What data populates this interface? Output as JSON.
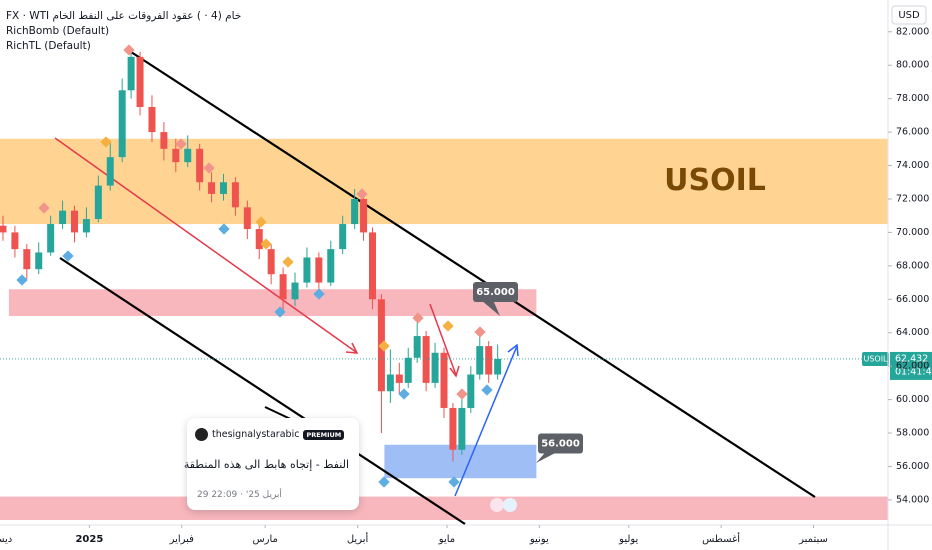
{
  "chart_data": {
    "type": "candlestick",
    "title": "FX · WTI خام (4 · ) عقود الفروقات على النفط الخام",
    "indicators": [
      "RichBomb (Default)",
      "RichTL (Default)"
    ],
    "currency": "USD",
    "symbol": "USOIL",
    "zone_label": "USOIL",
    "up_color": "#26a69a",
    "down_color": "#ef5350",
    "x": [
      -29,
      -25,
      -21,
      -17,
      -13,
      -9,
      -5,
      -1,
      3,
      7,
      11,
      14,
      17,
      21,
      25,
      29,
      33,
      37,
      41,
      45,
      49,
      53,
      57,
      61,
      65,
      69,
      73,
      77,
      81,
      85,
      89,
      92,
      95,
      98,
      101,
      104,
      107,
      110,
      113,
      116,
      119,
      122,
      125,
      128,
      131,
      134,
      137
    ],
    "open": [
      70.4,
      70.0,
      69.0,
      67.8,
      68.8,
      70.5,
      71.3,
      70.0,
      70.8,
      72.8,
      74.5,
      78.5,
      80.5,
      77.5,
      76.0,
      75.0,
      74.2,
      75.0,
      73.0,
      72.3,
      73.0,
      71.5,
      70.2,
      69.0,
      67.5,
      66.0,
      67.0,
      68.5,
      67.0,
      69.0,
      70.5,
      72.0,
      70.0,
      66.0,
      60.5,
      61.5,
      61.0,
      62.5,
      63.8,
      61.0,
      62.8,
      59.5,
      57.0,
      59.5,
      61.5,
      63.2,
      61.5
    ],
    "high": [
      71.0,
      70.4,
      69.3,
      69.4,
      71.0,
      71.9,
      71.6,
      71.5,
      73.4,
      75.4,
      79.2,
      81.0,
      80.8,
      78.2,
      76.6,
      75.6,
      75.8,
      75.3,
      73.6,
      73.5,
      73.3,
      71.9,
      70.6,
      69.3,
      67.9,
      67.6,
      69.1,
      68.8,
      69.5,
      71.0,
      72.6,
      72.3,
      70.3,
      66.3,
      63.0,
      62.2,
      63.1,
      64.6,
      64.1,
      63.4,
      63.1,
      59.8,
      60.1,
      62.0,
      63.9,
      63.5,
      63.3
    ],
    "low": [
      69.5,
      68.5,
      67.2,
      67.5,
      68.6,
      70.2,
      69.4,
      69.7,
      70.6,
      72.5,
      74.2,
      78.0,
      77.0,
      75.4,
      74.3,
      73.6,
      73.9,
      72.5,
      71.8,
      71.9,
      71.0,
      69.6,
      68.4,
      66.9,
      65.3,
      65.6,
      66.7,
      66.5,
      66.8,
      68.7,
      70.2,
      69.5,
      65.4,
      58.0,
      59.8,
      60.3,
      60.7,
      62.2,
      60.5,
      60.7,
      58.9,
      56.3,
      56.7,
      59.2,
      61.2,
      61.0,
      61.2
    ],
    "close": [
      70.0,
      69.0,
      67.8,
      68.8,
      70.5,
      71.3,
      70.0,
      70.8,
      72.8,
      74.5,
      78.5,
      80.5,
      77.5,
      76.0,
      75.0,
      74.2,
      75.0,
      73.0,
      72.3,
      73.0,
      71.5,
      70.2,
      69.0,
      67.5,
      66.0,
      67.0,
      68.5,
      67.0,
      69.0,
      70.5,
      72.0,
      70.0,
      66.0,
      60.5,
      61.5,
      61.0,
      62.5,
      63.8,
      61.0,
      62.8,
      59.5,
      57.0,
      59.5,
      61.5,
      63.2,
      61.5,
      62.432
    ],
    "xlim": [
      -30,
      268
    ],
    "xticks": [
      {
        "value": -31,
        "label": "ديسمبر"
      },
      {
        "value": 0,
        "label": "2025"
      },
      {
        "value": 31,
        "label": "فبراير"
      },
      {
        "value": 59,
        "label": "مارس"
      },
      {
        "value": 90,
        "label": "أبريل"
      },
      {
        "value": 120,
        "label": "مايو"
      },
      {
        "value": 151,
        "label": "يونيو"
      },
      {
        "value": 181,
        "label": "يوليو"
      },
      {
        "value": 212,
        "label": "أغسطس"
      },
      {
        "value": 243,
        "label": "سبتمبر"
      }
    ],
    "ylim": [
      52.5,
      83.9
    ],
    "yticks": [
      {
        "value": 82,
        "label": "82.000"
      },
      {
        "value": 80,
        "label": "80.000"
      },
      {
        "value": 78,
        "label": "78.000"
      },
      {
        "value": 76,
        "label": "76.000"
      },
      {
        "value": 74,
        "label": "74.000"
      },
      {
        "value": 72,
        "label": "72.000"
      },
      {
        "value": 70,
        "label": "70.000"
      },
      {
        "value": 68,
        "label": "68.000"
      },
      {
        "value": 66,
        "label": "66.000"
      },
      {
        "value": 64,
        "label": "64.000"
      },
      {
        "value": 62,
        "label": "62.000"
      },
      {
        "value": 60,
        "label": "60.000"
      },
      {
        "value": 58,
        "label": "58.000"
      },
      {
        "value": 56,
        "label": "56.000"
      },
      {
        "value": 54,
        "label": "54.000"
      }
    ],
    "grid": false,
    "last_price": {
      "value": 62.432,
      "label": "62.432"
    },
    "countdown": "01:41:45",
    "zones": [
      {
        "y": [
          70.5,
          75.6
        ],
        "x": [
          -30,
          268
        ],
        "color": "#ffcc80"
      },
      {
        "y": [
          65.0,
          66.6
        ],
        "x": [
          -27,
          150
        ],
        "color": "#f7a9b1"
      },
      {
        "y": [
          52.8,
          54.2
        ],
        "x": [
          -30,
          268
        ],
        "color": "#f7a9b1"
      },
      {
        "y": [
          55.3,
          57.3
        ],
        "x": [
          99,
          150
        ],
        "color": "#8fb3f5"
      }
    ],
    "callouts": [
      {
        "value": 65,
        "label": "65.000"
      },
      {
        "value": 56,
        "label": "56.000"
      }
    ],
    "note": {
      "author": "thesignalystarabic",
      "badge": "PREMIUM",
      "text": "النفط - إتجاه هابط الى هذه المنطقة",
      "time": "أبريل 25' · 22:09 29"
    }
  }
}
